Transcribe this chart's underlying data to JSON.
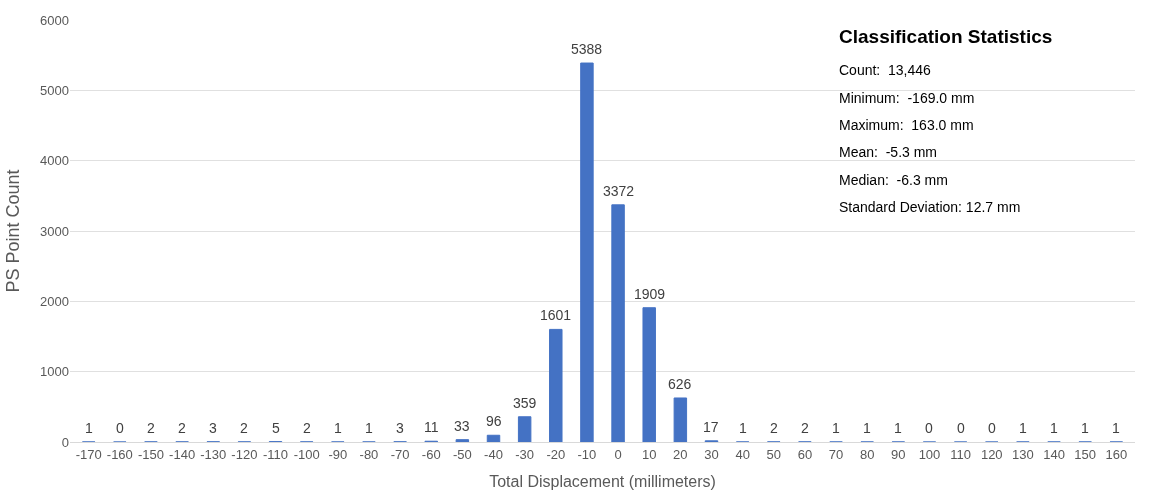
{
  "chart_data": {
    "type": "bar",
    "categories": [
      "-170",
      "-160",
      "-150",
      "-140",
      "-130",
      "-120",
      "-110",
      "-100",
      "-90",
      "-80",
      "-70",
      "-60",
      "-50",
      "-40",
      "-30",
      "-20",
      "-10",
      "0",
      "10",
      "20",
      "30",
      "40",
      "50",
      "60",
      "70",
      "80",
      "90",
      "100",
      "110",
      "120",
      "130",
      "140",
      "150",
      "160"
    ],
    "values": [
      1,
      0,
      2,
      2,
      3,
      2,
      5,
      2,
      1,
      1,
      3,
      11,
      33,
      96,
      359,
      1601,
      5388,
      3372,
      1909,
      626,
      17,
      1,
      2,
      2,
      1,
      1,
      1,
      0,
      0,
      0,
      1,
      1,
      1,
      1
    ],
    "color": "#4472c4",
    "xlabel": "Total Displacement (millimeters)",
    "ylabel": "PS Point Count",
    "ylim": [
      0,
      6000
    ],
    "yticks": [
      0,
      1000,
      2000,
      3000,
      4000,
      5000,
      6000
    ],
    "grid": "y",
    "data_labels": true,
    "annotations": [
      "Classification Statistics",
      "Count:  13,446",
      "Minimum:  -169.0 mm",
      "Maximum:  163.0 mm",
      "Mean:  -5.3 mm",
      "Median:  -6.3 mm",
      "Standard Deviation: 12.7 mm"
    ]
  }
}
